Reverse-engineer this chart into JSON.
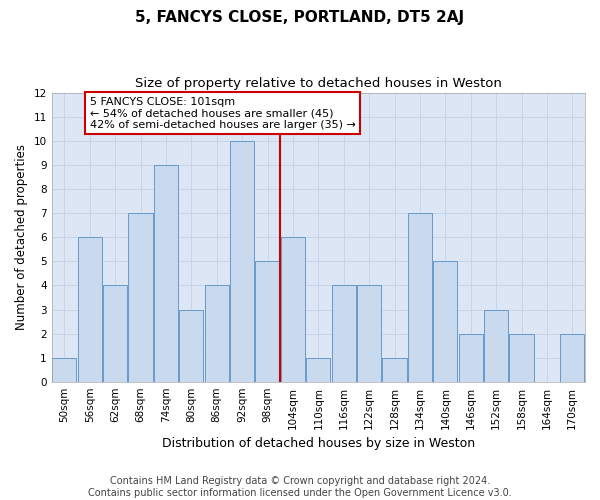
{
  "title1": "5, FANCYS CLOSE, PORTLAND, DT5 2AJ",
  "title2": "Size of property relative to detached houses in Weston",
  "xlabel": "Distribution of detached houses by size in Weston",
  "ylabel": "Number of detached properties",
  "categories": [
    "50sqm",
    "56sqm",
    "62sqm",
    "68sqm",
    "74sqm",
    "80sqm",
    "86sqm",
    "92sqm",
    "98sqm",
    "104sqm",
    "110sqm",
    "116sqm",
    "122sqm",
    "128sqm",
    "134sqm",
    "140sqm",
    "146sqm",
    "152sqm",
    "158sqm",
    "164sqm",
    "170sqm"
  ],
  "values": [
    1,
    6,
    4,
    7,
    9,
    3,
    4,
    10,
    5,
    6,
    1,
    4,
    4,
    1,
    7,
    5,
    2,
    3,
    2,
    0,
    2
  ],
  "bar_color": "#c9d9ee",
  "bar_edge_color": "#6699cc",
  "vline_x": 8.5,
  "vline_color": "#cc0000",
  "annotation_line1": "5 FANCYS CLOSE: 101sqm",
  "annotation_line2": "← 54% of detached houses are smaller (45)",
  "annotation_line3": "42% of semi-detached houses are larger (35) →",
  "annotation_box_color": "#cc0000",
  "annotation_box_bg": "#ffffff",
  "ylim": [
    0,
    12
  ],
  "yticks": [
    0,
    1,
    2,
    3,
    4,
    5,
    6,
    7,
    8,
    9,
    10,
    11,
    12
  ],
  "grid_color": "#c8d4e8",
  "bg_color": "#dce6f5",
  "footer1": "Contains HM Land Registry data © Crown copyright and database right 2024.",
  "footer2": "Contains public sector information licensed under the Open Government Licence v3.0.",
  "title1_fontsize": 11,
  "title2_fontsize": 9.5,
  "xlabel_fontsize": 9,
  "ylabel_fontsize": 8.5,
  "tick_fontsize": 7.5,
  "annotation_fontsize": 8,
  "footer_fontsize": 7
}
